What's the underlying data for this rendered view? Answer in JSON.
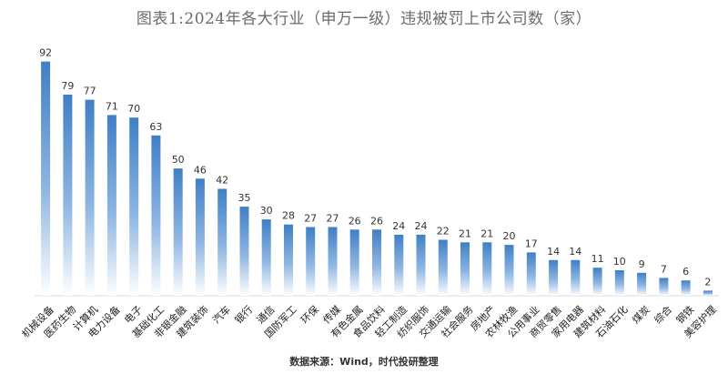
{
  "chart_data": {
    "type": "bar",
    "title": "图表1:2024年各大行业（申万一级）违规被罚上市公司数（家）",
    "source": "数据来源：Wind，时代投研整理",
    "categories": [
      "机械设备",
      "医药生物",
      "计算机",
      "电力设备",
      "电子",
      "基础化工",
      "非银金融",
      "建筑装饰",
      "汽车",
      "银行",
      "通信",
      "国防军工",
      "环保",
      "传媒",
      "有色金属",
      "食品饮料",
      "轻工制造",
      "纺织服饰",
      "交通运输",
      "社会服务",
      "房地产",
      "农林牧渔",
      "公用事业",
      "商贸零售",
      "家用电器",
      "建筑材料",
      "石油石化",
      "煤炭",
      "综合",
      "钢铁",
      "美容护理"
    ],
    "values": [
      92,
      79,
      77,
      71,
      70,
      63,
      50,
      46,
      42,
      35,
      30,
      28,
      27,
      27,
      26,
      26,
      24,
      24,
      22,
      21,
      21,
      20,
      17,
      14,
      14,
      11,
      10,
      9,
      7,
      6,
      2
    ],
    "ylim": [
      0,
      100
    ],
    "xlabel": "",
    "ylabel": "",
    "grid": false,
    "legend": "none",
    "bar_color_top": "#3f7fc6",
    "bar_color_bottom": "#ffffff"
  }
}
